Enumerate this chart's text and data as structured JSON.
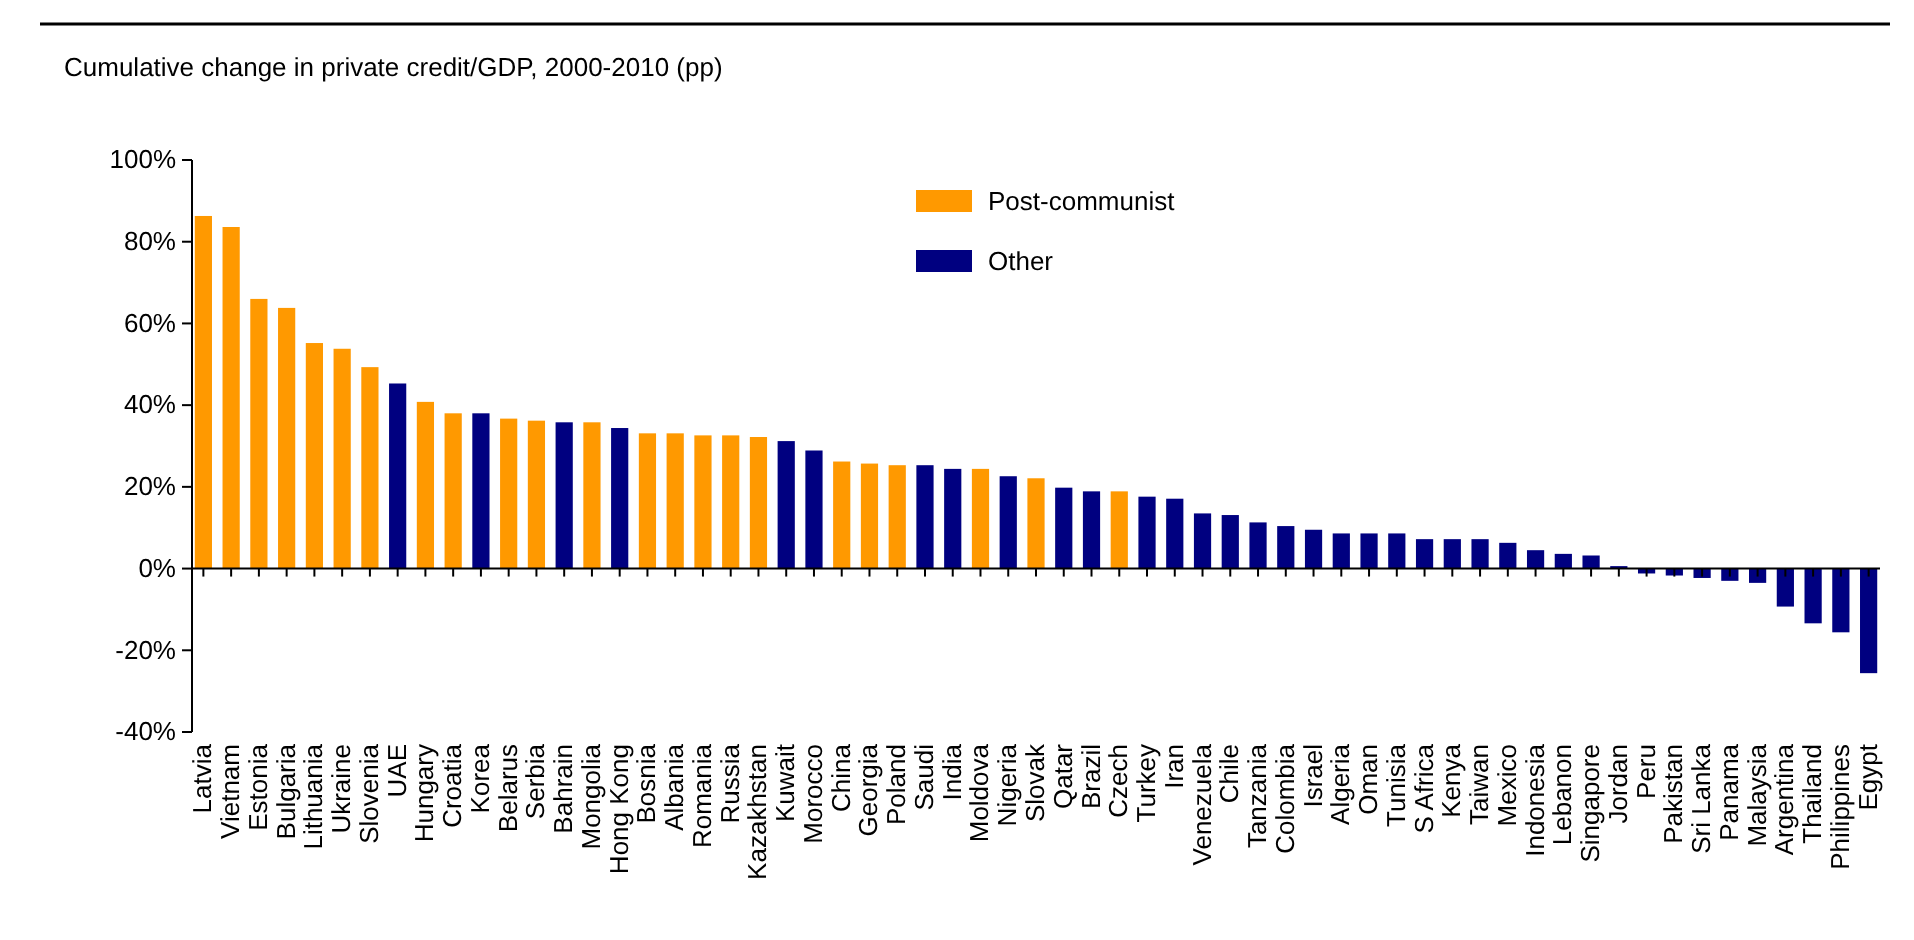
{
  "chart_data": {
    "type": "bar",
    "title": "Cumulative change in private credit/GDP, 2000-2010 (pp)",
    "stacked": true,
    "legend": "top",
    "categories": [
      "Latvia",
      "Vietnam",
      "Estonia",
      "Bulgaria",
      "Lithuania",
      "Ukraine",
      "Slovenia",
      "UAE",
      "Hungary",
      "Croatia",
      "Korea",
      "Belarus",
      "Serbia",
      "Bahrain",
      "Mongolia",
      "Hong Kong",
      "Bosnia",
      "Albania",
      "Romania",
      "Russia",
      "Kazakhstan",
      "Kuwait",
      "Morocco",
      "China",
      "Georgia",
      "Poland",
      "Saudi",
      "India",
      "Moldova",
      "Nigeria",
      "Slovak",
      "Qatar",
      "Brazil",
      "Czech",
      "Turkey",
      "Iran",
      "Venezuela",
      "Chile",
      "Tanzania",
      "Colombia",
      "Israel",
      "Algeria",
      "Oman",
      "Tunisia",
      "S Africa",
      "Kenya",
      "Taiwan",
      "Mexico",
      "Indonesia",
      "Lebanon",
      "Singapore",
      "Jordan",
      "Peru",
      "Pakistan",
      "Sri Lanka",
      "Panama",
      "Malaysia",
      "Argentina",
      "Thailand",
      "Philippines",
      "Egypt"
    ],
    "series": [
      {
        "name": "Post-communist",
        "color": "#ff9900",
        "values": [
          86.3,
          83.6,
          66.0,
          63.8,
          55.2,
          53.8,
          49.3,
          null,
          40.8,
          38.0,
          null,
          36.7,
          36.2,
          null,
          35.8,
          null,
          33.1,
          33.1,
          32.6,
          32.6,
          32.2,
          null,
          null,
          26.2,
          25.7,
          25.3,
          null,
          null,
          24.4,
          null,
          22.1,
          null,
          null,
          18.9,
          null,
          null,
          null,
          null,
          null,
          null,
          null,
          null,
          null,
          null,
          null,
          null,
          null,
          null,
          null,
          null,
          null,
          null,
          null,
          null,
          null,
          null,
          null,
          null,
          null,
          null,
          null
        ]
      },
      {
        "name": "Other",
        "color": "#000080",
        "values": [
          null,
          null,
          null,
          null,
          null,
          null,
          null,
          45.3,
          null,
          null,
          38.0,
          null,
          null,
          35.8,
          null,
          34.4,
          null,
          null,
          null,
          null,
          null,
          31.2,
          28.9,
          null,
          null,
          null,
          25.3,
          24.4,
          null,
          22.6,
          null,
          19.8,
          18.9,
          null,
          17.6,
          17.1,
          13.5,
          13.1,
          11.3,
          10.4,
          9.5,
          8.6,
          8.6,
          8.6,
          7.2,
          7.2,
          7.2,
          6.3,
          4.5,
          3.6,
          3.2,
          0.6,
          -1.2,
          -1.7,
          -2.3,
          -3.0,
          -3.5,
          -9.3,
          -13.4,
          -15.6,
          -25.6
        ]
      }
    ],
    "ylim": [
      -40,
      100
    ],
    "yticks": [
      {
        "value": -40,
        "label": "-40%"
      },
      {
        "value": -20,
        "label": "-20%"
      },
      {
        "value": 0,
        "label": "0%"
      },
      {
        "value": 20,
        "label": "20%"
      },
      {
        "value": 40,
        "label": "40%"
      },
      {
        "value": 60,
        "label": "60%"
      },
      {
        "value": 80,
        "label": "80%"
      },
      {
        "value": 100,
        "label": "100%"
      }
    ]
  }
}
